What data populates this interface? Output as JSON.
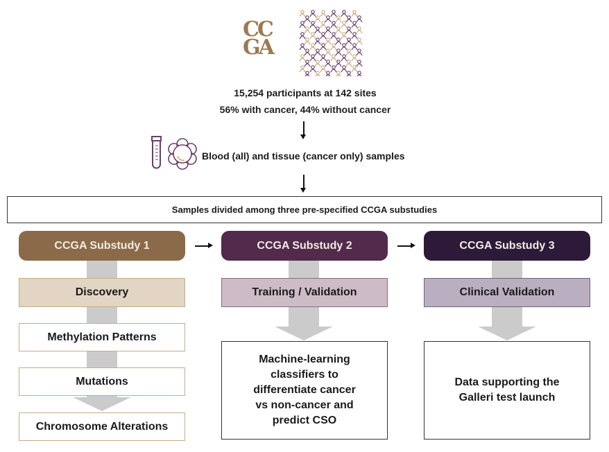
{
  "logo": {
    "text": "CCGA",
    "color": "#9a7a52"
  },
  "colors": {
    "gold": "#c9ab82",
    "purple": "#6b3f66",
    "substudy1": "#8b6a4a",
    "substudy2": "#522a4b",
    "substudy3": "#2d1a38",
    "arrow": "#cbcbcb"
  },
  "participants": {
    "line1": "15,254 participants at 142 sites",
    "line2": "56% with cancer, 44% without cancer"
  },
  "samples": {
    "label": "Blood (all) and tissue (cancer only) samples",
    "icons": [
      "test-tube-icon",
      "cell-icon"
    ]
  },
  "banner": "Samples divided among three pre-specified CCGA substudies",
  "columns": [
    {
      "title": "CCGA Substudy 1",
      "phase": "Discovery",
      "outputs": [
        "Methylation Patterns",
        "Mutations",
        "Chromosome Alterations"
      ]
    },
    {
      "title": "CCGA Substudy 2",
      "phase": "Training / Validation",
      "outputs": [
        "Machine-learning classifiers to differentiate cancer vs non-cancer and predict CSO"
      ]
    },
    {
      "title": "CCGA Substudy 3",
      "phase": "Clinical Validation",
      "outputs": [
        "Data supporting the Galleri test launch"
      ]
    }
  ]
}
